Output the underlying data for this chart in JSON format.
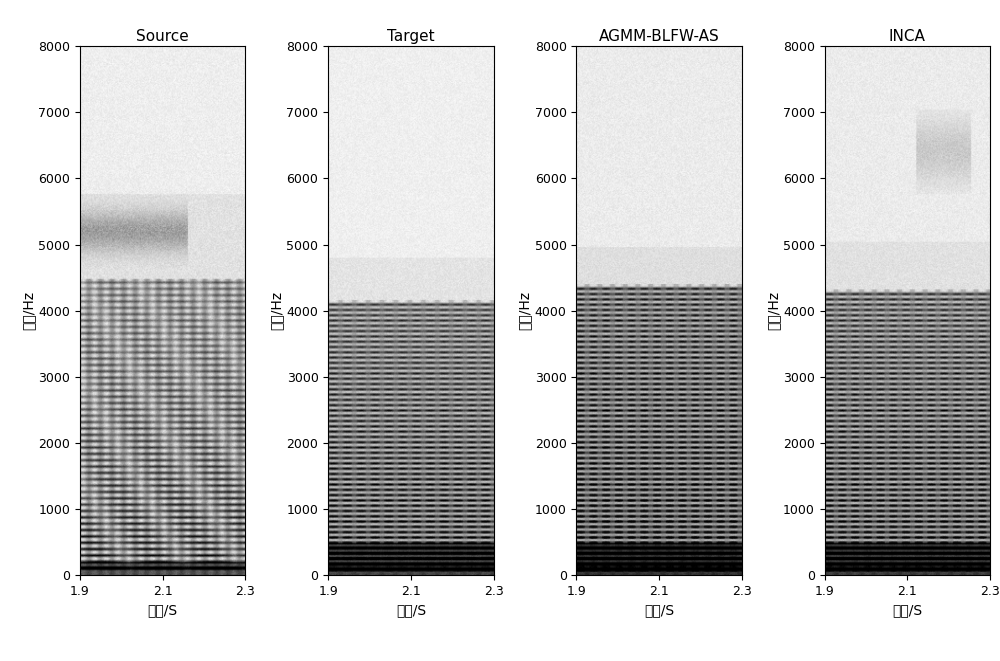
{
  "titles": [
    "Source",
    "Target",
    "AGMM-BLFW-AS",
    "INCA"
  ],
  "ylabel": "频率/Hz",
  "xlabel": "时间/S",
  "ylim": [
    0,
    8000
  ],
  "xlim": [
    1.9,
    2.3
  ],
  "yticks": [
    0,
    1000,
    2000,
    3000,
    4000,
    5000,
    6000,
    7000,
    8000
  ],
  "xticks": [
    1.9,
    2.1,
    2.3
  ],
  "background_color": "#ffffff",
  "figsize": [
    10.0,
    6.61
  ],
  "dpi": 100
}
